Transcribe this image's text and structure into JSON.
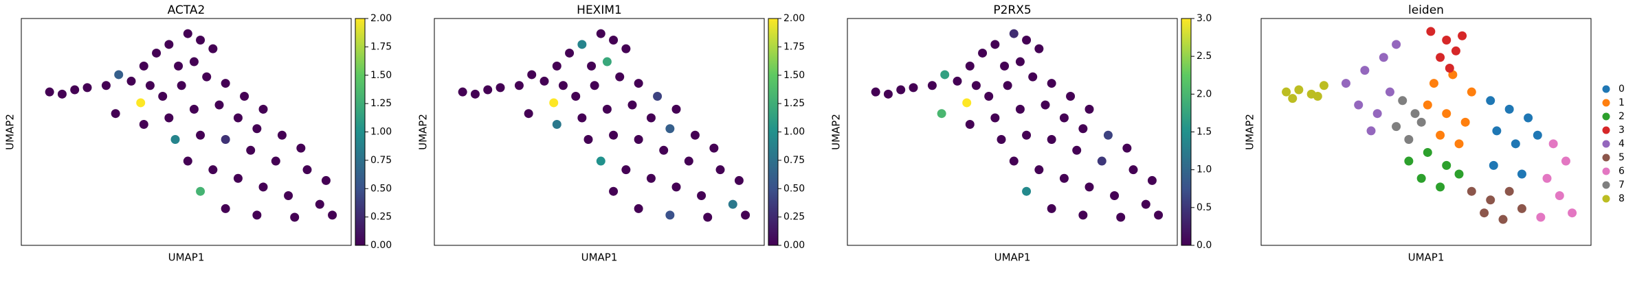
{
  "chart_data": [
    {
      "type": "scatter",
      "title": "ACTA2",
      "xlabel": "UMAP1",
      "ylabel": "UMAP2",
      "colormap": "viridis",
      "xlim": [
        -0.5,
        10
      ],
      "ylim": [
        -0.5,
        10
      ],
      "x": [
        0.4,
        0.8,
        1.2,
        1.6,
        2.2,
        2.6,
        3.0,
        3.4,
        3.8,
        4.2,
        4.8,
        5.2,
        5.6,
        4.5,
        5.0,
        3.6,
        2.5,
        3.3,
        4.0,
        4.6,
        5.4,
        6.0,
        6.6,
        7.2,
        3.4,
        4.2,
        5.0,
        5.8,
        6.4,
        7.0,
        7.8,
        8.4,
        4.4,
        5.2,
        6.0,
        6.8,
        7.6,
        8.6,
        9.2,
        4.8,
        5.6,
        6.4,
        7.2,
        8.0,
        9.0,
        5.2,
        6.0,
        7.0,
        8.2,
        9.4
      ],
      "y": [
        6.6,
        6.5,
        6.7,
        6.8,
        6.9,
        7.4,
        7.1,
        7.8,
        8.4,
        8.8,
        9.3,
        9.0,
        8.6,
        7.8,
        8.0,
        6.9,
        5.6,
        6.1,
        6.4,
        6.9,
        7.3,
        7.0,
        6.4,
        5.8,
        5.1,
        5.4,
        5.8,
        6.0,
        5.4,
        4.9,
        4.6,
        4.0,
        4.4,
        4.6,
        4.4,
        3.9,
        3.4,
        3.0,
        2.5,
        3.4,
        3.0,
        2.6,
        2.2,
        1.8,
        1.4,
        2.0,
        1.2,
        0.9,
        0.8,
        0.9
      ],
      "values": [
        0,
        0,
        0,
        0,
        0,
        0.6,
        0,
        0,
        0,
        0,
        0,
        0,
        0,
        0,
        0,
        0,
        0,
        2,
        0,
        0,
        0,
        0,
        0,
        0,
        0,
        0,
        0,
        0,
        0,
        0,
        0,
        0,
        0.9,
        0,
        0.3,
        0,
        0,
        0,
        0,
        0,
        0,
        0,
        0,
        0,
        0,
        1.3,
        0,
        0,
        0,
        0
      ],
      "clim": [
        0,
        2
      ],
      "cticks": [
        {
          "value": 0,
          "label": "0.00"
        },
        {
          "value": 0.25,
          "label": "0.25"
        },
        {
          "value": 0.5,
          "label": "0.50"
        },
        {
          "value": 0.75,
          "label": "0.75"
        },
        {
          "value": 1,
          "label": "1.00"
        },
        {
          "value": 1.25,
          "label": "1.25"
        },
        {
          "value": 1.5,
          "label": "1.50"
        },
        {
          "value": 1.75,
          "label": "1.75"
        },
        {
          "value": 2,
          "label": "2.00"
        }
      ]
    },
    {
      "type": "scatter",
      "title": "HEXIM1",
      "xlabel": "UMAP1",
      "ylabel": "UMAP2",
      "colormap": "viridis",
      "xlim": [
        -0.5,
        10
      ],
      "ylim": [
        -0.5,
        10
      ],
      "x": [
        0.4,
        0.8,
        1.2,
        1.6,
        2.2,
        2.6,
        3.0,
        3.4,
        3.8,
        4.2,
        4.8,
        5.2,
        5.6,
        4.5,
        5.0,
        3.6,
        2.5,
        3.3,
        4.0,
        4.6,
        5.4,
        6.0,
        6.6,
        7.2,
        3.4,
        4.2,
        5.0,
        5.8,
        6.4,
        7.0,
        7.8,
        8.4,
        4.4,
        5.2,
        6.0,
        6.8,
        7.6,
        8.6,
        9.2,
        4.8,
        5.6,
        6.4,
        7.2,
        8.0,
        9.0,
        5.2,
        6.0,
        7.0,
        8.2,
        9.4
      ],
      "y": [
        6.6,
        6.5,
        6.7,
        6.8,
        6.9,
        7.4,
        7.1,
        7.8,
        8.4,
        8.8,
        9.3,
        9.0,
        8.6,
        7.8,
        8.0,
        6.9,
        5.6,
        6.1,
        6.4,
        6.9,
        7.3,
        7.0,
        6.4,
        5.8,
        5.1,
        5.4,
        5.8,
        6.0,
        5.4,
        4.9,
        4.6,
        4.0,
        4.4,
        4.6,
        4.4,
        3.9,
        3.4,
        3.0,
        2.5,
        3.4,
        3.0,
        2.6,
        2.2,
        1.8,
        1.4,
        2.0,
        1.2,
        0.9,
        0.8,
        0.9
      ],
      "values": [
        0,
        0,
        0,
        0,
        0,
        0,
        0,
        0,
        0,
        0.9,
        0,
        0,
        0,
        0,
        1.2,
        0,
        0,
        2,
        0,
        0,
        0,
        0,
        0.4,
        0,
        0.8,
        0,
        0,
        0,
        0,
        0.6,
        0,
        0,
        0,
        0,
        0,
        0,
        0,
        0,
        0,
        1.0,
        0,
        0,
        0,
        0,
        0.8,
        0,
        0,
        0.5,
        0,
        0
      ],
      "clim": [
        0,
        2
      ],
      "cticks": [
        {
          "value": 0,
          "label": "0.00"
        },
        {
          "value": 0.25,
          "label": "0.25"
        },
        {
          "value": 0.5,
          "label": "0.50"
        },
        {
          "value": 0.75,
          "label": "0.75"
        },
        {
          "value": 1,
          "label": "1.00"
        },
        {
          "value": 1.25,
          "label": "1.25"
        },
        {
          "value": 1.5,
          "label": "1.50"
        },
        {
          "value": 1.75,
          "label": "1.75"
        },
        {
          "value": 2,
          "label": "2.00"
        }
      ]
    },
    {
      "type": "scatter",
      "title": "P2RX5",
      "xlabel": "UMAP1",
      "ylabel": "UMAP2",
      "colormap": "viridis",
      "xlim": [
        -0.5,
        10
      ],
      "ylim": [
        -0.5,
        10
      ],
      "x": [
        0.4,
        0.8,
        1.2,
        1.6,
        2.2,
        2.6,
        3.0,
        3.4,
        3.8,
        4.2,
        4.8,
        5.2,
        5.6,
        4.5,
        5.0,
        3.6,
        2.5,
        3.3,
        4.0,
        4.6,
        5.4,
        6.0,
        6.6,
        7.2,
        3.4,
        4.2,
        5.0,
        5.8,
        6.4,
        7.0,
        7.8,
        8.4,
        4.4,
        5.2,
        6.0,
        6.8,
        7.6,
        8.6,
        9.2,
        4.8,
        5.6,
        6.4,
        7.2,
        8.0,
        9.0,
        5.2,
        6.0,
        7.0,
        8.2,
        9.4
      ],
      "y": [
        6.6,
        6.5,
        6.7,
        6.8,
        6.9,
        7.4,
        7.1,
        7.8,
        8.4,
        8.8,
        9.3,
        9.0,
        8.6,
        7.8,
        8.0,
        6.9,
        5.6,
        6.1,
        6.4,
        6.9,
        7.3,
        7.0,
        6.4,
        5.8,
        5.1,
        5.4,
        5.8,
        6.0,
        5.4,
        4.9,
        4.6,
        4.0,
        4.4,
        4.6,
        4.4,
        3.9,
        3.4,
        3.0,
        2.5,
        3.4,
        3.0,
        2.6,
        2.2,
        1.8,
        1.4,
        2.0,
        1.2,
        0.9,
        0.8,
        0.9
      ],
      "values": [
        0,
        0,
        0,
        0,
        0,
        1.7,
        0,
        0,
        0,
        0,
        0.4,
        0,
        0,
        0,
        0,
        0,
        2,
        3,
        0,
        0,
        0,
        0,
        0,
        0,
        0,
        0,
        0,
        0,
        0,
        0,
        0.6,
        0,
        0,
        0,
        0,
        0,
        0.5,
        0,
        0,
        0,
        0,
        0,
        0,
        0,
        0,
        1.4,
        0,
        0,
        0,
        0
      ],
      "clim": [
        0,
        3
      ],
      "cticks": [
        {
          "value": 0,
          "label": "0.0"
        },
        {
          "value": 0.5,
          "label": "0.5"
        },
        {
          "value": 1,
          "label": "1.0"
        },
        {
          "value": 1.5,
          "label": "1.5"
        },
        {
          "value": 2,
          "label": "2.0"
        },
        {
          "value": 2.5,
          "label": "2.5"
        },
        {
          "value": 3,
          "label": "3.0"
        }
      ]
    },
    {
      "type": "scatter",
      "title": "leiden",
      "xlabel": "UMAP1",
      "ylabel": "UMAP2",
      "legend": "right",
      "xlim": [
        -0.5,
        10
      ],
      "ylim": [
        -0.5,
        10
      ],
      "series": [
        {
          "name": "0",
          "color": "#1f77b4",
          "x": [
            6.8,
            7.4,
            8.0,
            7.0,
            7.6,
            8.3,
            6.9,
            7.8
          ],
          "y": [
            6.2,
            5.8,
            5.4,
            4.8,
            4.2,
            4.6,
            3.2,
            2.8
          ]
        },
        {
          "name": "1",
          "color": "#ff7f0e",
          "x": [
            5.0,
            5.6,
            6.2,
            4.8,
            5.4,
            6.0,
            5.2,
            5.8
          ],
          "y": [
            7.0,
            7.4,
            6.6,
            6.0,
            5.6,
            5.2,
            4.6,
            4.2
          ]
        },
        {
          "name": "2",
          "color": "#2ca02c",
          "x": [
            4.2,
            4.8,
            5.4,
            4.6,
            5.2,
            5.8
          ],
          "y": [
            3.4,
            3.8,
            3.2,
            2.6,
            2.2,
            2.8
          ]
        },
        {
          "name": "3",
          "color": "#d62728",
          "x": [
            4.9,
            5.4,
            5.9,
            5.2,
            5.7,
            5.5
          ],
          "y": [
            9.4,
            9.0,
            9.2,
            8.2,
            8.5,
            7.7
          ]
        },
        {
          "name": "4",
          "color": "#9467bd",
          "x": [
            2.2,
            2.8,
            3.4,
            3.8,
            2.6,
            3.2,
            3.6,
            3.0
          ],
          "y": [
            7.0,
            7.6,
            8.2,
            8.8,
            6.0,
            5.6,
            6.6,
            4.8
          ]
        },
        {
          "name": "5",
          "color": "#8c564b",
          "x": [
            6.2,
            6.8,
            7.4,
            6.6,
            7.2,
            7.8
          ],
          "y": [
            2.0,
            1.6,
            2.0,
            1.0,
            0.7,
            1.2
          ]
        },
        {
          "name": "6",
          "color": "#e377c2",
          "x": [
            8.8,
            9.2,
            8.6,
            9.0,
            8.4,
            9.4
          ],
          "y": [
            4.2,
            3.4,
            2.6,
            1.8,
            0.8,
            1.0
          ]
        },
        {
          "name": "7",
          "color": "#7f7f7f",
          "x": [
            4.0,
            4.4,
            3.8,
            4.2,
            4.6
          ],
          "y": [
            6.2,
            5.6,
            5.0,
            4.4,
            5.2
          ]
        },
        {
          "name": "8",
          "color": "#bcbd22",
          "x": [
            0.3,
            0.7,
            1.1,
            1.5,
            0.5,
            1.3
          ],
          "y": [
            6.6,
            6.7,
            6.5,
            6.9,
            6.3,
            6.4
          ]
        }
      ]
    }
  ]
}
